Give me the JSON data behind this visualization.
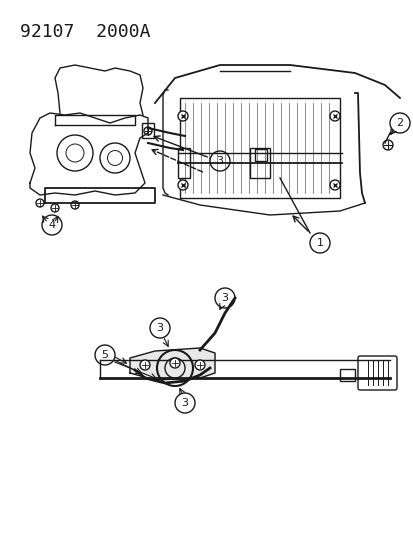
{
  "title": "92107  2000A",
  "bg_color": "#ffffff",
  "line_color": "#1a1a1a",
  "title_fontsize": 13,
  "fig_width": 4.14,
  "fig_height": 5.33,
  "dpi": 100
}
